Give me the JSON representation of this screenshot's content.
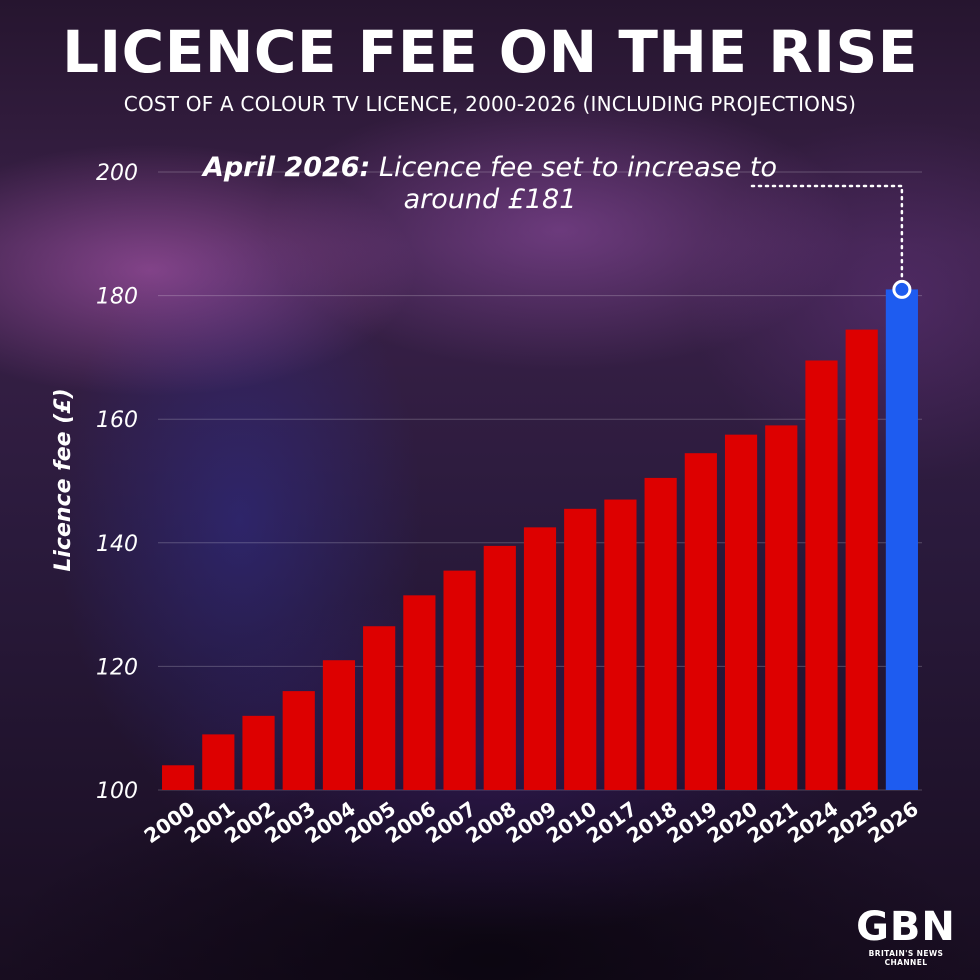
{
  "title": "LICENCE FEE ON THE RISE",
  "subtitle": "COST OF A COLOUR TV LICENCE, 2000-2026 (INCLUDING PROJECTIONS)",
  "annotation": {
    "bold": "April 2026:",
    "text": " Licence fee set to increase to around £181"
  },
  "logo": {
    "mark": "GBN",
    "tagline": "BRITAIN'S NEWS CHANNEL"
  },
  "colors": {
    "bar": "#dd0000",
    "highlight": "#1e5cf0",
    "text": "#ffffff"
  },
  "chart_data": {
    "type": "bar",
    "categories": [
      "2000",
      "2001",
      "2002",
      "2003",
      "2004",
      "2005",
      "2006",
      "2007",
      "2008",
      "2009",
      "2010",
      "2017",
      "2018",
      "2019",
      "2020",
      "2021",
      "2024",
      "2025",
      "2026"
    ],
    "values": [
      104,
      109,
      112,
      116,
      121,
      126.5,
      131.5,
      135.5,
      139.5,
      142.5,
      145.5,
      147,
      150.5,
      154.5,
      157.5,
      159,
      169.5,
      174.5,
      181
    ],
    "highlight_category": "2026",
    "title": "LICENCE FEE ON THE RISE",
    "xlabel": "",
    "ylabel": "Licence fee (£)",
    "yticks": [
      100,
      120,
      140,
      160,
      180,
      200
    ],
    "ylim": [
      100,
      200
    ],
    "grid": true,
    "legend": "none"
  }
}
